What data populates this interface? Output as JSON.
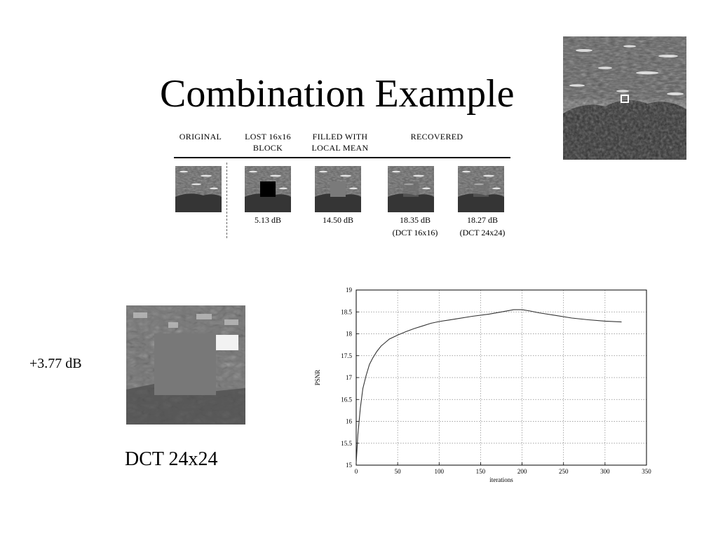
{
  "slide": {
    "title": "Combination Example",
    "gain_label": "+3.77 dB",
    "large_caption": "DCT 24x24"
  },
  "figure": {
    "headers": [
      {
        "id": "original",
        "text": "ORIGINAL"
      },
      {
        "id": "lost",
        "text": "LOST 16x16\nBLOCK"
      },
      {
        "id": "filled",
        "text": "FILLED WITH\nLOCAL MEAN"
      },
      {
        "id": "recovered",
        "text": "RECOVERED"
      }
    ],
    "captions": [
      {
        "id": "lost",
        "text": "5.13 dB"
      },
      {
        "id": "filled",
        "text": "14.50 dB"
      },
      {
        "id": "dct16",
        "text": "18.35 dB\n(DCT 16x16)"
      },
      {
        "id": "dct24",
        "text": "18.27 dB\n(DCT 24x24)"
      }
    ]
  },
  "chart_data": {
    "type": "line",
    "title": "",
    "xlabel": "iterations",
    "ylabel": "PSNR",
    "xlim": [
      0,
      350
    ],
    "ylim": [
      15,
      19
    ],
    "xticks": [
      0,
      50,
      100,
      150,
      200,
      250,
      300,
      350
    ],
    "yticks": [
      15,
      15.5,
      16,
      16.5,
      17,
      17.5,
      18,
      18.5,
      19
    ],
    "grid": true,
    "series": [
      {
        "x": [
          0,
          2,
          5,
          8,
          12,
          16,
          20,
          25,
          30,
          35,
          40,
          50,
          60,
          70,
          80,
          90,
          100,
          120,
          140,
          160,
          175,
          190,
          200,
          210,
          220,
          240,
          260,
          280,
          300,
          320
        ],
        "y": [
          15.05,
          15.7,
          16.3,
          16.75,
          17.05,
          17.3,
          17.45,
          17.6,
          17.72,
          17.8,
          17.88,
          17.97,
          18.05,
          18.12,
          18.18,
          18.24,
          18.28,
          18.34,
          18.4,
          18.45,
          18.5,
          18.55,
          18.55,
          18.52,
          18.48,
          18.42,
          18.36,
          18.32,
          18.29,
          18.27
        ]
      }
    ]
  }
}
